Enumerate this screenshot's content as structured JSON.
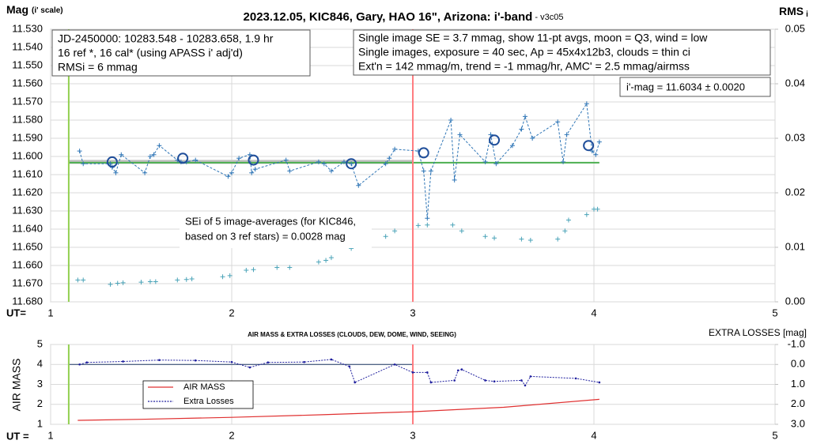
{
  "chart_data": [
    {
      "type": "line",
      "title": "2023.12.05, KIC846, Gary, HAO 16\", Arizona: i'-band",
      "subtitle": " - v3c05",
      "y_label": "Mag",
      "y_label_note": "(i' scale)",
      "y2_label": "RMS",
      "y2_label_sub": "i",
      "x_label": "UT=",
      "xlim": [
        1,
        5
      ],
      "xticks": [
        1,
        2,
        3,
        4,
        5
      ],
      "ylim": [
        11.68,
        11.53
      ],
      "yticks": [
        {
          "value": 11.53,
          "label": "11.530"
        },
        {
          "value": 11.54,
          "label": "11.540"
        },
        {
          "value": 11.55,
          "label": "11.550"
        },
        {
          "value": 11.56,
          "label": "11.560"
        },
        {
          "value": 11.57,
          "label": "11.570"
        },
        {
          "value": 11.58,
          "label": "11.580"
        },
        {
          "value": 11.59,
          "label": "11.590"
        },
        {
          "value": 11.6,
          "label": "11.600"
        },
        {
          "value": 11.61,
          "label": "11.610"
        },
        {
          "value": 11.62,
          "label": "11.620"
        },
        {
          "value": 11.63,
          "label": "11.630"
        },
        {
          "value": 11.64,
          "label": "11.640"
        },
        {
          "value": 11.65,
          "label": "11.650"
        },
        {
          "value": 11.66,
          "label": "11.660"
        },
        {
          "value": 11.67,
          "label": "11.670"
        },
        {
          "value": 11.68,
          "label": "11.680"
        }
      ],
      "y2lim": [
        0,
        0.05
      ],
      "y2ticks": [
        {
          "value": 0,
          "label": "0.00"
        },
        0.01,
        0.02,
        0.03,
        0.04,
        0.05
      ],
      "grid": true,
      "vlines": [
        {
          "x": 1.1,
          "color": "#92d050"
        },
        {
          "x": 3.0,
          "color": "#ff7c80"
        }
      ],
      "hlines": [
        {
          "y": 11.603,
          "x": [
            1.1,
            3.0
          ],
          "color": "#bfbfbf",
          "width": 5
        },
        {
          "y": 11.6034,
          "x": [
            1.1,
            4.03
          ],
          "color": "#4caf50",
          "width": 2
        }
      ],
      "series": [
        {
          "color": "#2e75b6",
          "line": "dashed",
          "marker": "+",
          "x": [
            1.16,
            1.18,
            1.33,
            1.34,
            1.36,
            1.39,
            1.52,
            1.55,
            1.57,
            1.6,
            1.7,
            1.72,
            1.75,
            1.8,
            1.98,
            2.0,
            2.04,
            2.1,
            2.11,
            2.13,
            2.3,
            2.32,
            2.48,
            2.51,
            2.55,
            2.62,
            2.66,
            2.7,
            2.85,
            2.87,
            2.9,
            3.03,
            3.06,
            3.08,
            3.1,
            3.21,
            3.23,
            3.26,
            3.4,
            3.43,
            3.46,
            3.55,
            3.6,
            3.62,
            3.66,
            3.8,
            3.83,
            3.85,
            3.96,
            3.99,
            4.01,
            4.03
          ],
          "values": [
            11.597,
            11.604,
            11.604,
            11.606,
            11.609,
            11.599,
            11.609,
            11.6,
            11.599,
            11.594,
            11.602,
            11.603,
            11.603,
            11.602,
            11.611,
            11.609,
            11.601,
            11.599,
            11.609,
            11.607,
            11.602,
            11.608,
            11.603,
            11.604,
            11.608,
            11.603,
            11.604,
            11.616,
            11.604,
            11.601,
            11.596,
            11.597,
            11.608,
            11.634,
            11.608,
            11.58,
            11.613,
            11.588,
            11.603,
            11.588,
            11.604,
            11.594,
            11.585,
            11.578,
            11.59,
            11.581,
            11.603,
            11.588,
            11.571,
            11.597,
            11.599,
            11.592
          ]
        },
        {
          "color": "#1f4e9a",
          "line": "none",
          "marker": "circle",
          "x": [
            1.34,
            1.73,
            2.12,
            2.66,
            3.06,
            3.45,
            3.97
          ],
          "values": [
            11.603,
            11.601,
            11.602,
            11.604,
            11.598,
            11.591,
            11.594
          ]
        },
        {
          "color": "#4aa3b8",
          "line": "none",
          "marker": "+",
          "axis": "y2",
          "x": [
            1.15,
            1.18,
            1.33,
            1.37,
            1.4,
            1.5,
            1.55,
            1.58,
            1.7,
            1.75,
            1.78,
            1.95,
            1.99,
            2.08,
            2.12,
            2.25,
            2.32,
            2.48,
            2.52,
            2.55,
            2.66,
            2.7,
            2.85,
            2.9,
            3.03,
            3.08,
            3.22,
            3.27,
            3.4,
            3.45,
            3.6,
            3.65,
            3.8,
            3.84,
            3.86,
            3.96,
            4.0,
            4.02
          ],
          "values": [
            0.004,
            0.004,
            0.0032,
            0.0034,
            0.0035,
            0.0036,
            0.0037,
            0.0037,
            0.004,
            0.0041,
            0.0042,
            0.0046,
            0.0048,
            0.0058,
            0.0059,
            0.0063,
            0.0063,
            0.0073,
            0.0076,
            0.0081,
            0.0098,
            0.0105,
            0.012,
            0.013,
            0.014,
            0.0141,
            0.0141,
            0.013,
            0.012,
            0.0117,
            0.0115,
            0.0113,
            0.0115,
            0.013,
            0.015,
            0.016,
            0.017,
            0.017
          ]
        }
      ],
      "annotations": [
        {
          "lines": [
            "JD-2450000: 10283.548 - 10283.658, 1.9  hr",
            "16 ref *, 16 cal* (using APASS i' adj'd)",
            "RMSi = 6 mmag"
          ]
        },
        {
          "lines": [
            "Single image SE = 3.7 mmag, show 11-pt avgs, moon = Q3, wind = low",
            "Single images, exposure = 40 sec, Ap = 45x4x12b3, clouds = thin ci",
            "Ext'n = 142 mmag/m, trend = -1 mmag/hr, AMC' = 2.5 mmag/airmss"
          ]
        },
        {
          "lines": [
            "i'-mag = 11.6034 ± 0.0020"
          ]
        },
        {
          "lines": [
            "SEi of 5 image-averages (for KIC846,",
            "based on 3 ref stars) = 0.0028 mag"
          ]
        }
      ]
    },
    {
      "type": "line",
      "title": "AIR MASS & EXTRA LOSSES (CLOUDS, DEW, DOME, WIND, SEEING)",
      "y_label": "AIR MASS",
      "y2_label": "EXTRA LOSSES [mag]",
      "x_label": "UT =",
      "xlim": [
        1,
        5
      ],
      "xticks": [
        1,
        2,
        3,
        4,
        5
      ],
      "ylim": [
        1,
        5
      ],
      "yticks": [
        1,
        2,
        3,
        4,
        5
      ],
      "y2lim": [
        3.0,
        -1.0
      ],
      "y2ticks": [
        {
          "value": -1,
          "label": "-1.0"
        },
        {
          "value": 0,
          "label": "0.0"
        },
        {
          "value": 1,
          "label": "1.0"
        },
        {
          "value": 2,
          "label": "2.0"
        },
        {
          "value": 3,
          "label": "3.0"
        }
      ],
      "grid": true,
      "vlines": [
        {
          "x": 1.1,
          "color": "#92d050"
        },
        {
          "x": 3.0,
          "color": "#ff7c80"
        }
      ],
      "hlines": [
        {
          "y": 0,
          "axis": "y2",
          "x": [
            1.1,
            3.0
          ],
          "color": "#1f3864",
          "width": 1
        }
      ],
      "series": [
        {
          "name": "AIR MASS",
          "color": "#e03030",
          "line": "solid",
          "marker": "none",
          "x": [
            1.15,
            1.5,
            2.0,
            2.5,
            3.0,
            3.5,
            4.03
          ],
          "values": [
            1.2,
            1.25,
            1.35,
            1.48,
            1.63,
            1.85,
            2.25
          ]
        },
        {
          "name": "Extra Losses",
          "color": "#1f1f9e",
          "line": "dotted",
          "marker": "dot",
          "axis": "y2",
          "x": [
            1.16,
            1.2,
            1.4,
            1.6,
            1.8,
            2.0,
            2.1,
            2.2,
            2.4,
            2.55,
            2.65,
            2.68,
            2.9,
            3.0,
            3.08,
            3.1,
            3.23,
            3.25,
            3.27,
            3.4,
            3.45,
            3.6,
            3.62,
            3.65,
            3.9,
            4.03
          ],
          "values": [
            0.0,
            -0.1,
            -0.15,
            -0.22,
            -0.2,
            -0.12,
            0.15,
            -0.1,
            -0.12,
            -0.25,
            0.1,
            0.9,
            0.0,
            0.4,
            0.4,
            0.9,
            0.8,
            0.3,
            0.25,
            0.8,
            0.85,
            0.8,
            1.05,
            0.6,
            0.7,
            0.9
          ]
        }
      ]
    }
  ]
}
